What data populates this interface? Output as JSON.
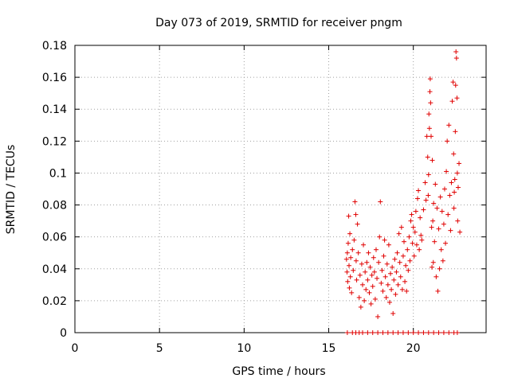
{
  "chart_data": {
    "type": "scatter",
    "title": "Day 073 of 2019, SRMTID for receiver pngm",
    "xlabel": "GPS time / hours",
    "ylabel": "SRMTID / TECUs",
    "xlim": [
      0,
      24.3
    ],
    "ylim": [
      0,
      0.18
    ],
    "x_ticks": [
      0,
      5,
      10,
      15,
      20
    ],
    "y_ticks": [
      0,
      0.02,
      0.04,
      0.06,
      0.08,
      0.1,
      0.12,
      0.14,
      0.16,
      0.18
    ],
    "x_tick_labels": [
      "0",
      "5",
      "10",
      "15",
      "20"
    ],
    "y_tick_labels": [
      "0",
      "0.02",
      "0.04",
      "0.06",
      "0.08",
      "0.1",
      "0.12",
      "0.14",
      "0.16",
      "0.18"
    ],
    "grid": true,
    "marker": "+",
    "series": [
      {
        "name": "SRMTID",
        "color": "#e00000",
        "points": [
          [
            16.05,
            0.046
          ],
          [
            16.08,
            0.038
          ],
          [
            16.1,
            0.05
          ],
          [
            16.12,
            0.032
          ],
          [
            16.15,
            0.056
          ],
          [
            16.18,
            0.073
          ],
          [
            16.2,
            0.042
          ],
          [
            16.22,
            0.028
          ],
          [
            16.25,
            0.062
          ],
          [
            16.28,
            0.035
          ],
          [
            16.3,
            0.047
          ],
          [
            16.35,
            0.025
          ],
          [
            16.4,
            0.052
          ],
          [
            16.45,
            0.039
          ],
          [
            16.5,
            0.058
          ],
          [
            16.55,
            0.082
          ],
          [
            16.6,
            0.074
          ],
          [
            16.62,
            0.045
          ],
          [
            16.65,
            0.033
          ],
          [
            16.7,
            0.068
          ],
          [
            16.75,
            0.05
          ],
          [
            16.8,
            0.022
          ],
          [
            16.85,
            0.036
          ],
          [
            16.9,
            0.016
          ],
          [
            16.95,
            0.043
          ],
          [
            17.0,
            0.03
          ],
          [
            17.05,
            0.055
          ],
          [
            17.1,
            0.02
          ],
          [
            17.15,
            0.038
          ],
          [
            17.2,
            0.027
          ],
          [
            17.25,
            0.044
          ],
          [
            17.3,
            0.033
          ],
          [
            17.35,
            0.05
          ],
          [
            17.4,
            0.025
          ],
          [
            17.45,
            0.041
          ],
          [
            17.5,
            0.018
          ],
          [
            17.55,
            0.036
          ],
          [
            17.6,
            0.029
          ],
          [
            17.65,
            0.047
          ],
          [
            17.7,
            0.038
          ],
          [
            17.75,
            0.021
          ],
          [
            17.8,
            0.052
          ],
          [
            17.85,
            0.034
          ],
          [
            17.9,
            0.01
          ],
          [
            17.95,
            0.044
          ],
          [
            18.0,
            0.06
          ],
          [
            18.05,
            0.082
          ],
          [
            18.1,
            0.031
          ],
          [
            18.15,
            0.039
          ],
          [
            18.2,
            0.026
          ],
          [
            18.25,
            0.048
          ],
          [
            18.3,
            0.058
          ],
          [
            18.35,
            0.035
          ],
          [
            18.4,
            0.022
          ],
          [
            18.45,
            0.043
          ],
          [
            18.5,
            0.03
          ],
          [
            18.55,
            0.055
          ],
          [
            18.6,
            0.019
          ],
          [
            18.65,
            0.037
          ],
          [
            18.7,
            0.027
          ],
          [
            18.75,
            0.041
          ],
          [
            18.8,
            0.012
          ],
          [
            18.85,
            0.033
          ],
          [
            18.9,
            0.046
          ],
          [
            18.95,
            0.024
          ],
          [
            19.0,
            0.038
          ],
          [
            19.05,
            0.05
          ],
          [
            19.1,
            0.03
          ],
          [
            19.15,
            0.062
          ],
          [
            19.2,
            0.044
          ],
          [
            19.25,
            0.035
          ],
          [
            19.3,
            0.066
          ],
          [
            19.35,
            0.027
          ],
          [
            19.4,
            0.048
          ],
          [
            19.45,
            0.057
          ],
          [
            19.5,
            0.032
          ],
          [
            19.55,
            0.042
          ],
          [
            19.6,
            0.026
          ],
          [
            19.65,
            0.052
          ],
          [
            19.7,
            0.039
          ],
          [
            19.75,
            0.06
          ],
          [
            19.8,
            0.045
          ],
          [
            19.85,
            0.07
          ],
          [
            19.9,
            0.074
          ],
          [
            19.95,
            0.056
          ],
          [
            20.0,
            0.066
          ],
          [
            20.05,
            0.048
          ],
          [
            20.1,
            0.063
          ],
          [
            20.15,
            0.076
          ],
          [
            20.2,
            0.055
          ],
          [
            20.25,
            0.084
          ],
          [
            20.3,
            0.089
          ],
          [
            20.35,
            0.052
          ],
          [
            20.4,
            0.072
          ],
          [
            20.45,
            0.061
          ],
          [
            20.5,
            0.058
          ],
          [
            20.6,
            0.077
          ],
          [
            20.7,
            0.094
          ],
          [
            20.75,
            0.083
          ],
          [
            20.8,
            0.123
          ],
          [
            20.85,
            0.11
          ],
          [
            20.88,
            0.086
          ],
          [
            20.9,
            0.099
          ],
          [
            20.92,
            0.137
          ],
          [
            20.95,
            0.128
          ],
          [
            20.98,
            0.151
          ],
          [
            21.0,
            0.159
          ],
          [
            21.02,
            0.144
          ],
          [
            21.05,
            0.123
          ],
          [
            21.08,
            0.066
          ],
          [
            21.1,
            0.041
          ],
          [
            21.12,
            0.108
          ],
          [
            21.15,
            0.07
          ],
          [
            21.18,
            0.044
          ],
          [
            21.2,
            0.081
          ],
          [
            21.25,
            0.057
          ],
          [
            21.3,
            0.093
          ],
          [
            21.35,
            0.035
          ],
          [
            21.4,
            0.078
          ],
          [
            21.45,
            0.026
          ],
          [
            21.5,
            0.065
          ],
          [
            21.55,
            0.04
          ],
          [
            21.6,
            0.085
          ],
          [
            21.65,
            0.052
          ],
          [
            21.7,
            0.076
          ],
          [
            21.75,
            0.045
          ],
          [
            21.8,
            0.068
          ],
          [
            21.85,
            0.09
          ],
          [
            21.9,
            0.056
          ],
          [
            21.95,
            0.101
          ],
          [
            22.0,
            0.12
          ],
          [
            22.05,
            0.074
          ],
          [
            22.1,
            0.13
          ],
          [
            22.15,
            0.086
          ],
          [
            22.2,
            0.064
          ],
          [
            22.25,
            0.094
          ],
          [
            22.3,
            0.145
          ],
          [
            22.35,
            0.157
          ],
          [
            22.38,
            0.112
          ],
          [
            22.4,
            0.078
          ],
          [
            22.42,
            0.088
          ],
          [
            22.45,
            0.096
          ],
          [
            22.48,
            0.126
          ],
          [
            22.5,
            0.155
          ],
          [
            22.52,
            0.176
          ],
          [
            22.55,
            0.172
          ],
          [
            22.58,
            0.147
          ],
          [
            22.6,
            0.1
          ],
          [
            22.62,
            0.07
          ],
          [
            22.65,
            0.091
          ],
          [
            22.7,
            0.106
          ],
          [
            22.75,
            0.063
          ],
          [
            16.1,
            0.0
          ],
          [
            16.4,
            0.0
          ],
          [
            16.6,
            0.0
          ],
          [
            16.8,
            0.0
          ],
          [
            17.0,
            0.0
          ],
          [
            17.3,
            0.0
          ],
          [
            17.6,
            0.0
          ],
          [
            17.9,
            0.0
          ],
          [
            18.2,
            0.0
          ],
          [
            18.5,
            0.0
          ],
          [
            18.8,
            0.0
          ],
          [
            19.1,
            0.0
          ],
          [
            19.4,
            0.0
          ],
          [
            19.7,
            0.0
          ],
          [
            20.0,
            0.0
          ],
          [
            20.3,
            0.0
          ],
          [
            20.6,
            0.0
          ],
          [
            20.9,
            0.0
          ],
          [
            21.2,
            0.0
          ],
          [
            21.5,
            0.0
          ],
          [
            21.8,
            0.0
          ],
          [
            22.1,
            0.0
          ],
          [
            22.4,
            0.0
          ],
          [
            22.6,
            0.0
          ]
        ]
      }
    ]
  }
}
